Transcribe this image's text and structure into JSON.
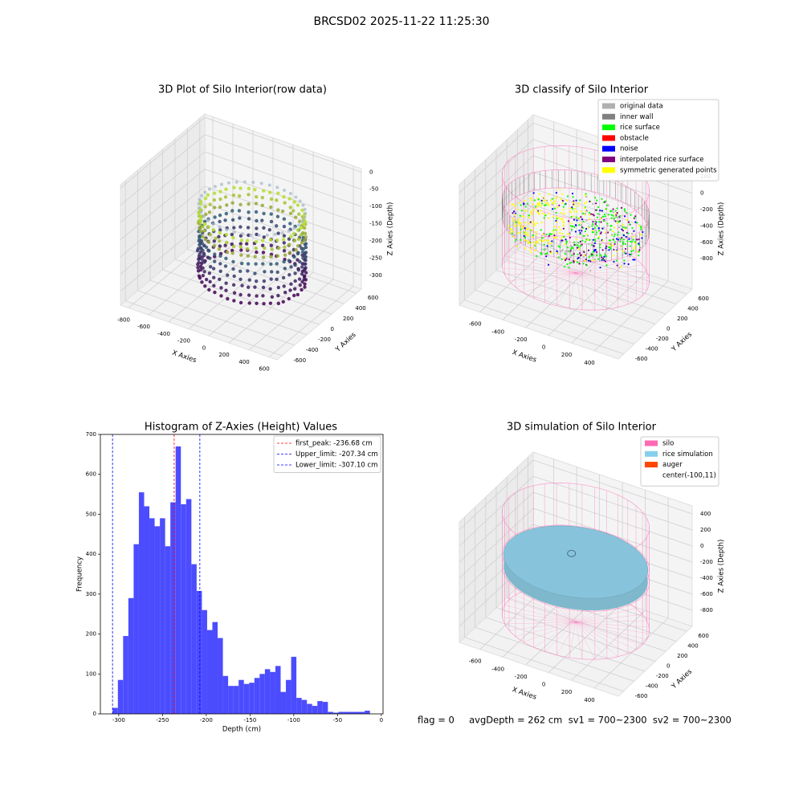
{
  "title": "BRCSD02 2025-11-22 11:25:30",
  "footer": "flag = 0     avgDepth = 262 cm  sv1 = 700~2300  sv2 = 700~2300",
  "chart_data": [
    {
      "type": "scatter3d",
      "title": "3D Plot of Silo Interior(row data)",
      "x_label": "X Axies",
      "y_label": "Y Axies",
      "z_label": "Z Axies (Depth)",
      "xlim": [
        -880,
        680
      ],
      "ylim": [
        -680,
        680
      ],
      "zlim": [
        -340,
        10
      ],
      "xticks": [
        -800,
        -600,
        -400,
        -200,
        0,
        200,
        400,
        600
      ],
      "yticks": [
        -600,
        -400,
        -200,
        0,
        200,
        400,
        600
      ],
      "zticks": [
        0,
        -50,
        -100,
        -150,
        -200,
        -250,
        -300
      ]
    },
    {
      "type": "scatter3d",
      "title": "3D classify of Silo Interior",
      "x_label": "X Axies",
      "y_label": "Y Axies",
      "z_label": "Z Axies (Depth)",
      "xlim": [
        -780,
        610
      ],
      "ylim": [
        -700,
        700
      ],
      "zlim": [
        -1170,
        300
      ],
      "xticks": [
        -600,
        -400,
        -200,
        0,
        200,
        400
      ],
      "yticks": [
        -600,
        -400,
        -200,
        0,
        200,
        400,
        600
      ],
      "zticks": [
        200,
        0,
        -200,
        -400,
        -600,
        -800
      ],
      "legend": [
        {
          "name": "original data",
          "color": "#b0b0b0"
        },
        {
          "name": "inner wall",
          "color": "#808080"
        },
        {
          "name": "rice surface",
          "color": "#00ff00"
        },
        {
          "name": "obstacle",
          "color": "#ff0000"
        },
        {
          "name": "noise",
          "color": "#0000ff"
        },
        {
          "name": "interpolated rice surface",
          "color": "#800080"
        },
        {
          "name": "symmetric generated points",
          "color": "#ffff00"
        }
      ]
    },
    {
      "type": "histogram",
      "title": "Histogram of Z-Axies (Height) Values",
      "x_label": "Depth (cm)",
      "y_label": "Frequency",
      "color": "#4c4cff",
      "xlim": [
        -321,
        2
      ],
      "ylim": [
        0,
        700
      ],
      "xticks": [
        -300,
        -250,
        -200,
        -150,
        -100,
        -50,
        0
      ],
      "yticks": [
        0,
        100,
        200,
        300,
        400,
        500,
        600,
        700
      ],
      "bins": [
        -307,
        -301,
        -295,
        -289,
        -283,
        -277,
        -271,
        -265,
        -259,
        -253,
        -247,
        -241,
        -235,
        -229,
        -223,
        -217,
        -211,
        -205,
        -199,
        -193,
        -187,
        -181,
        -175,
        -169,
        -163,
        -157,
        -151,
        -145,
        -139,
        -133,
        -127,
        -121,
        -115,
        -109,
        -103,
        -97,
        -91,
        -85,
        -79,
        -73,
        -67,
        -61,
        -55,
        -49,
        -43,
        -37,
        -31,
        -25,
        -19,
        -13
      ],
      "counts": [
        15,
        85,
        195,
        290,
        425,
        555,
        520,
        490,
        470,
        490,
        420,
        530,
        670,
        525,
        538,
        375,
        308,
        260,
        210,
        230,
        190,
        95,
        70,
        70,
        85,
        75,
        78,
        90,
        100,
        112,
        105,
        120,
        55,
        85,
        143,
        40,
        35,
        25,
        20,
        32,
        30,
        5,
        3,
        5,
        5,
        5,
        5,
        5,
        8
      ],
      "legend_corner": "upper right",
      "lines": [
        {
          "name": "first_peak: -236.68 cm",
          "value": -236.68,
          "color": "#ff0000"
        },
        {
          "name": "Upper_limit: -207.34 cm",
          "value": -207.34,
          "color": "#0000ff"
        },
        {
          "name": "Lower_limit: -307.10 cm",
          "value": -307.1,
          "color": "#0000ff"
        }
      ]
    },
    {
      "type": "mesh3d",
      "title": "3D simulation of Silo Interior",
      "x_label": "X Axies",
      "y_label": "Y Axies",
      "z_label": "Z Axies (Depth)",
      "xlim": [
        -780,
        610
      ],
      "ylim": [
        -700,
        700
      ],
      "zlim": [
        -1000,
        500
      ],
      "xticks": [
        -600,
        -400,
        -200,
        0,
        200,
        400
      ],
      "yticks": [
        -600,
        -400,
        -200,
        0,
        200,
        400,
        600
      ],
      "zticks": [
        400,
        200,
        0,
        -200,
        -400,
        -600,
        -800
      ],
      "legend": [
        {
          "name": "silo",
          "color": "#ff69b4"
        },
        {
          "name": "rice simulation",
          "color": "#87ceeb"
        },
        {
          "name": "auger",
          "color": "#ff4500"
        },
        {
          "name": "center(-100,11)"
        }
      ]
    }
  ]
}
